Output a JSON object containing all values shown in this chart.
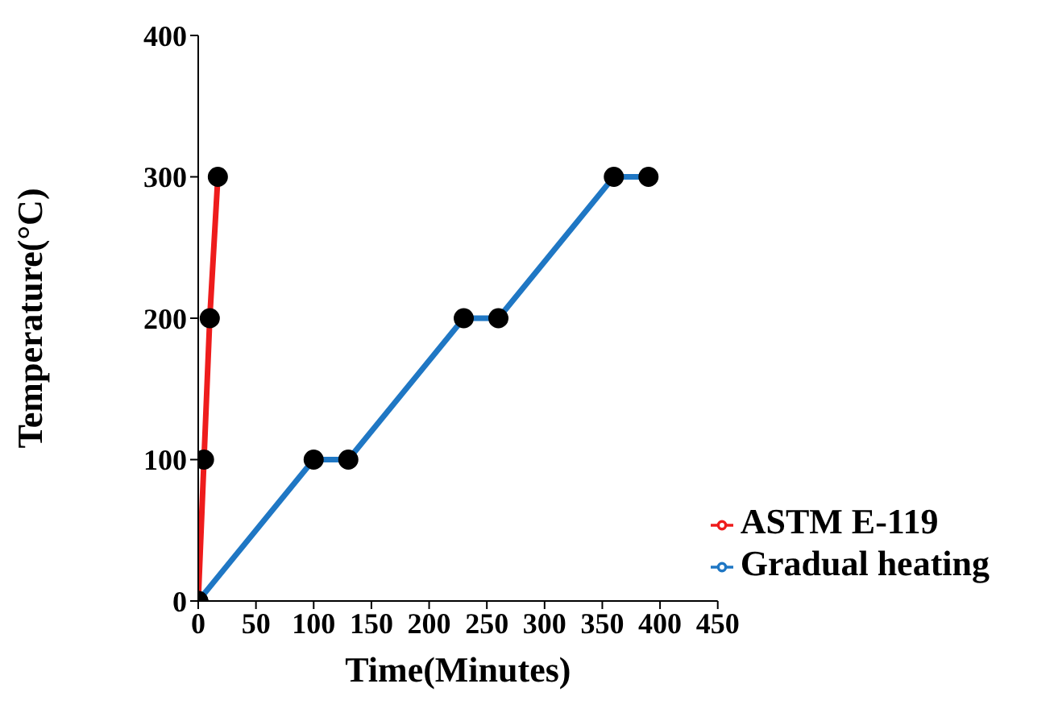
{
  "chart_data": {
    "type": "line",
    "xlabel": "Time(Minutes)",
    "ylabel": "Temperature(°C)",
    "xlim": [
      0,
      450
    ],
    "xticks": [
      0,
      50,
      100,
      150,
      200,
      250,
      300,
      350,
      400,
      450
    ],
    "ylim": [
      0,
      400
    ],
    "yticks": [
      0,
      100,
      200,
      300,
      400
    ],
    "grid": false,
    "legend": "bottom right",
    "marker": "circle",
    "line_style": "solid",
    "series": [
      {
        "name": "Gradual heating",
        "color": "#1f77c4",
        "x": [
          0,
          100,
          130,
          230,
          260,
          360,
          390
        ],
        "values": [
          0,
          100,
          100,
          200,
          200,
          300,
          300
        ]
      },
      {
        "name": "ASTM E-119",
        "color": "#ee1c1c",
        "x": [
          0,
          5,
          10,
          17
        ],
        "values": [
          0,
          100,
          200,
          300
        ]
      }
    ]
  }
}
